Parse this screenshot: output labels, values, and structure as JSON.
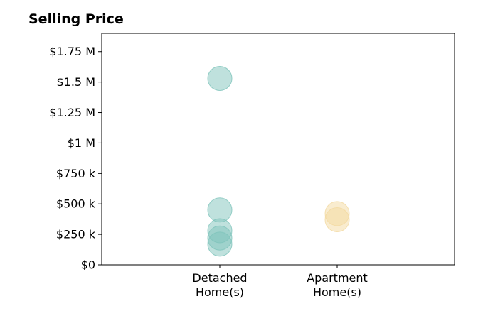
{
  "chart_data": {
    "type": "scatter",
    "title": "Selling Price",
    "xlabel": "",
    "ylabel": "",
    "categories": [
      [
        "Detached",
        "Home(s)"
      ],
      [
        "Apartment",
        "Home(s)"
      ]
    ],
    "y_ticks": [
      0,
      250000,
      500000,
      750000,
      1000000,
      1250000,
      1500000,
      1750000
    ],
    "y_tick_labels": [
      "$0",
      "$250 k",
      "$500 k",
      "$750 k",
      "$1 M",
      "$1.25 M",
      "$1.5 M",
      "$1.75 M"
    ],
    "ylim": [
      0,
      1900000
    ],
    "grid": false,
    "series": [
      {
        "category": 0,
        "color": "#7fc4bb",
        "values": [
          1530000,
          450000,
          280000,
          220000,
          170000
        ]
      },
      {
        "category": 1,
        "color": "#f3d9a0",
        "values": [
          420000,
          370000
        ]
      }
    ]
  }
}
